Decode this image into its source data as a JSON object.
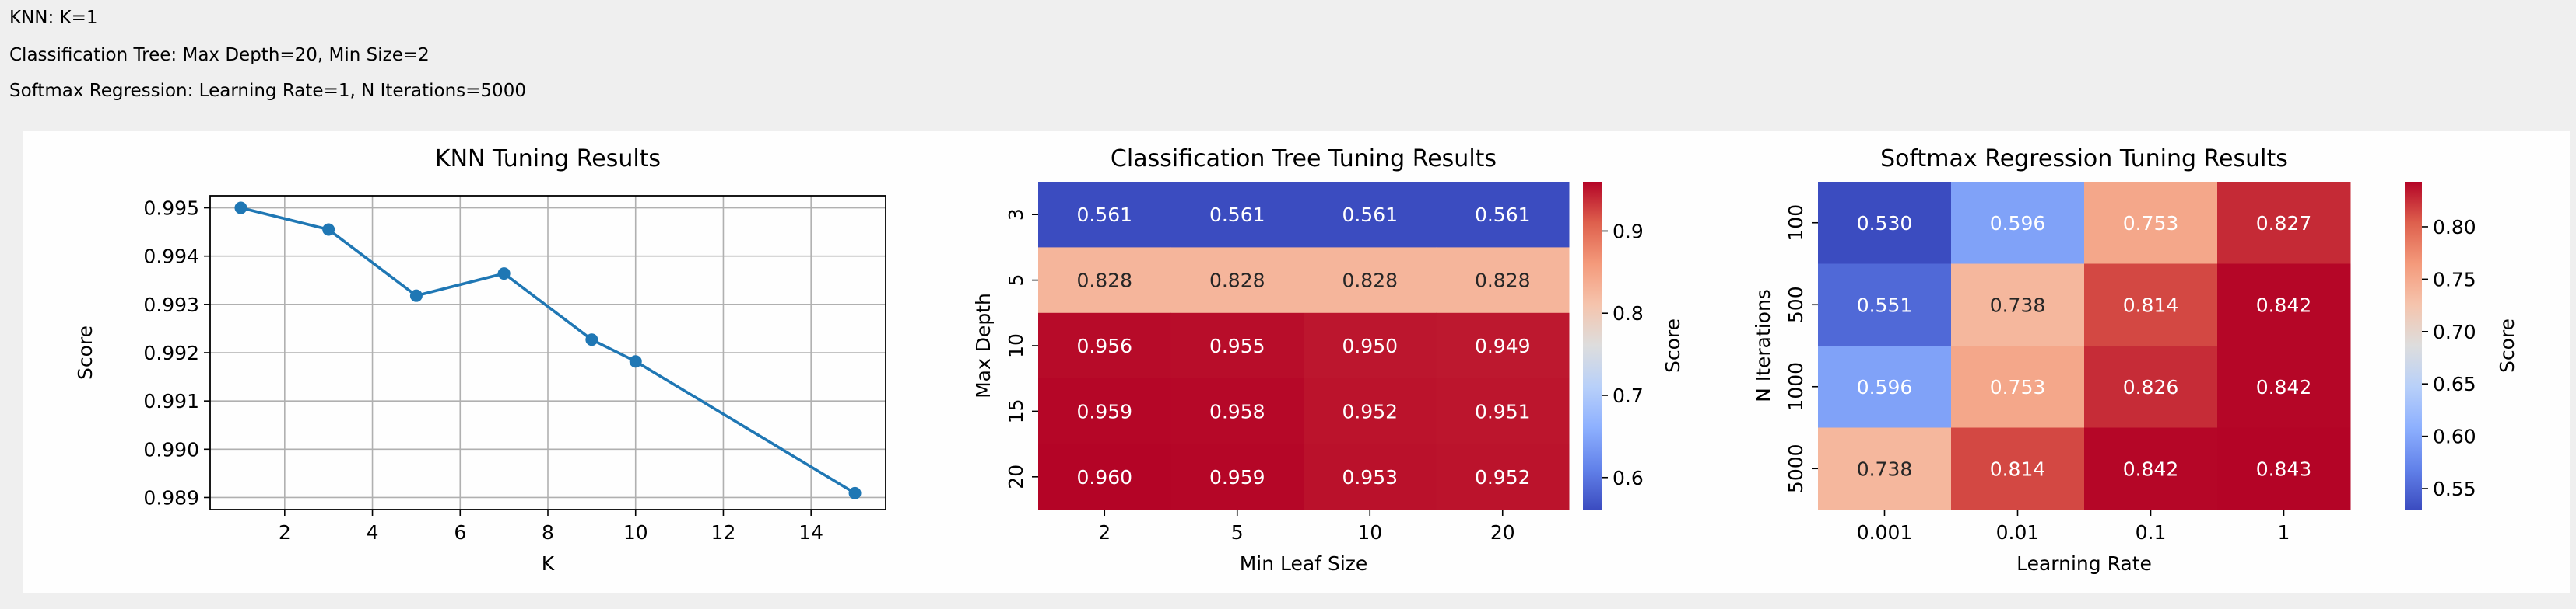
{
  "header": {
    "lines": [
      "KNN: K=1",
      "Classification Tree: Max Depth=20, Min Size=2",
      "Softmax Regression: Learning Rate=1, N Iterations=5000"
    ]
  },
  "chart_data": [
    {
      "type": "line",
      "title": "KNN Tuning Results",
      "xlabel": "K",
      "ylabel": "Score",
      "x": [
        1,
        3,
        5,
        7,
        9,
        10,
        15
      ],
      "y": [
        0.995,
        0.99455,
        0.99318,
        0.99364,
        0.99227,
        0.99182,
        0.98909
      ],
      "xlim": [
        0.3,
        15.7
      ],
      "ylim": [
        0.98875,
        0.99525
      ],
      "xticks": [
        2,
        4,
        6,
        8,
        10,
        12,
        14
      ],
      "yticks": [
        0.989,
        0.99,
        0.991,
        0.992,
        0.993,
        0.994,
        0.995
      ],
      "ytick_labels": [
        "0.989",
        "0.990",
        "0.991",
        "0.992",
        "0.993",
        "0.994",
        "0.995"
      ],
      "grid": true,
      "color": "#1f77b4"
    },
    {
      "type": "heatmap",
      "title": "Classification Tree Tuning Results",
      "xlabel": "Min Leaf Size",
      "ylabel": "Max Depth",
      "x_categories": [
        "2",
        "5",
        "10",
        "20"
      ],
      "y_categories": [
        "3",
        "5",
        "10",
        "15",
        "20"
      ],
      "values": [
        [
          0.561,
          0.561,
          0.561,
          0.561
        ],
        [
          0.828,
          0.828,
          0.828,
          0.828
        ],
        [
          0.956,
          0.955,
          0.95,
          0.949
        ],
        [
          0.959,
          0.958,
          0.952,
          0.951
        ],
        [
          0.96,
          0.959,
          0.953,
          0.952
        ]
      ],
      "colormap": "coolwarm",
      "vmin": 0.561,
      "vmax": 0.96,
      "colorbar_label": "Score",
      "colorbar_ticks": [
        0.6,
        0.7,
        0.8,
        0.9
      ],
      "colorbar_tick_labels": [
        "0.6",
        "0.7",
        "0.8",
        "0.9"
      ]
    },
    {
      "type": "heatmap",
      "title": "Softmax Regression Tuning Results",
      "xlabel": "Learning Rate",
      "ylabel": "N Iterations",
      "x_categories": [
        "0.001",
        "0.01",
        "0.1",
        "1"
      ],
      "y_categories": [
        "100",
        "500",
        "1000",
        "5000"
      ],
      "values": [
        [
          0.53,
          0.596,
          0.753,
          0.827
        ],
        [
          0.551,
          0.738,
          0.814,
          0.842
        ],
        [
          0.596,
          0.753,
          0.826,
          0.842
        ],
        [
          0.738,
          0.814,
          0.842,
          0.843
        ]
      ],
      "colormap": "coolwarm",
      "vmin": 0.53,
      "vmax": 0.843,
      "colorbar_label": "Score",
      "colorbar_ticks": [
        0.55,
        0.6,
        0.65,
        0.7,
        0.75,
        0.8
      ],
      "colorbar_tick_labels": [
        "0.55",
        "0.60",
        "0.65",
        "0.70",
        "0.75",
        "0.80"
      ]
    }
  ]
}
